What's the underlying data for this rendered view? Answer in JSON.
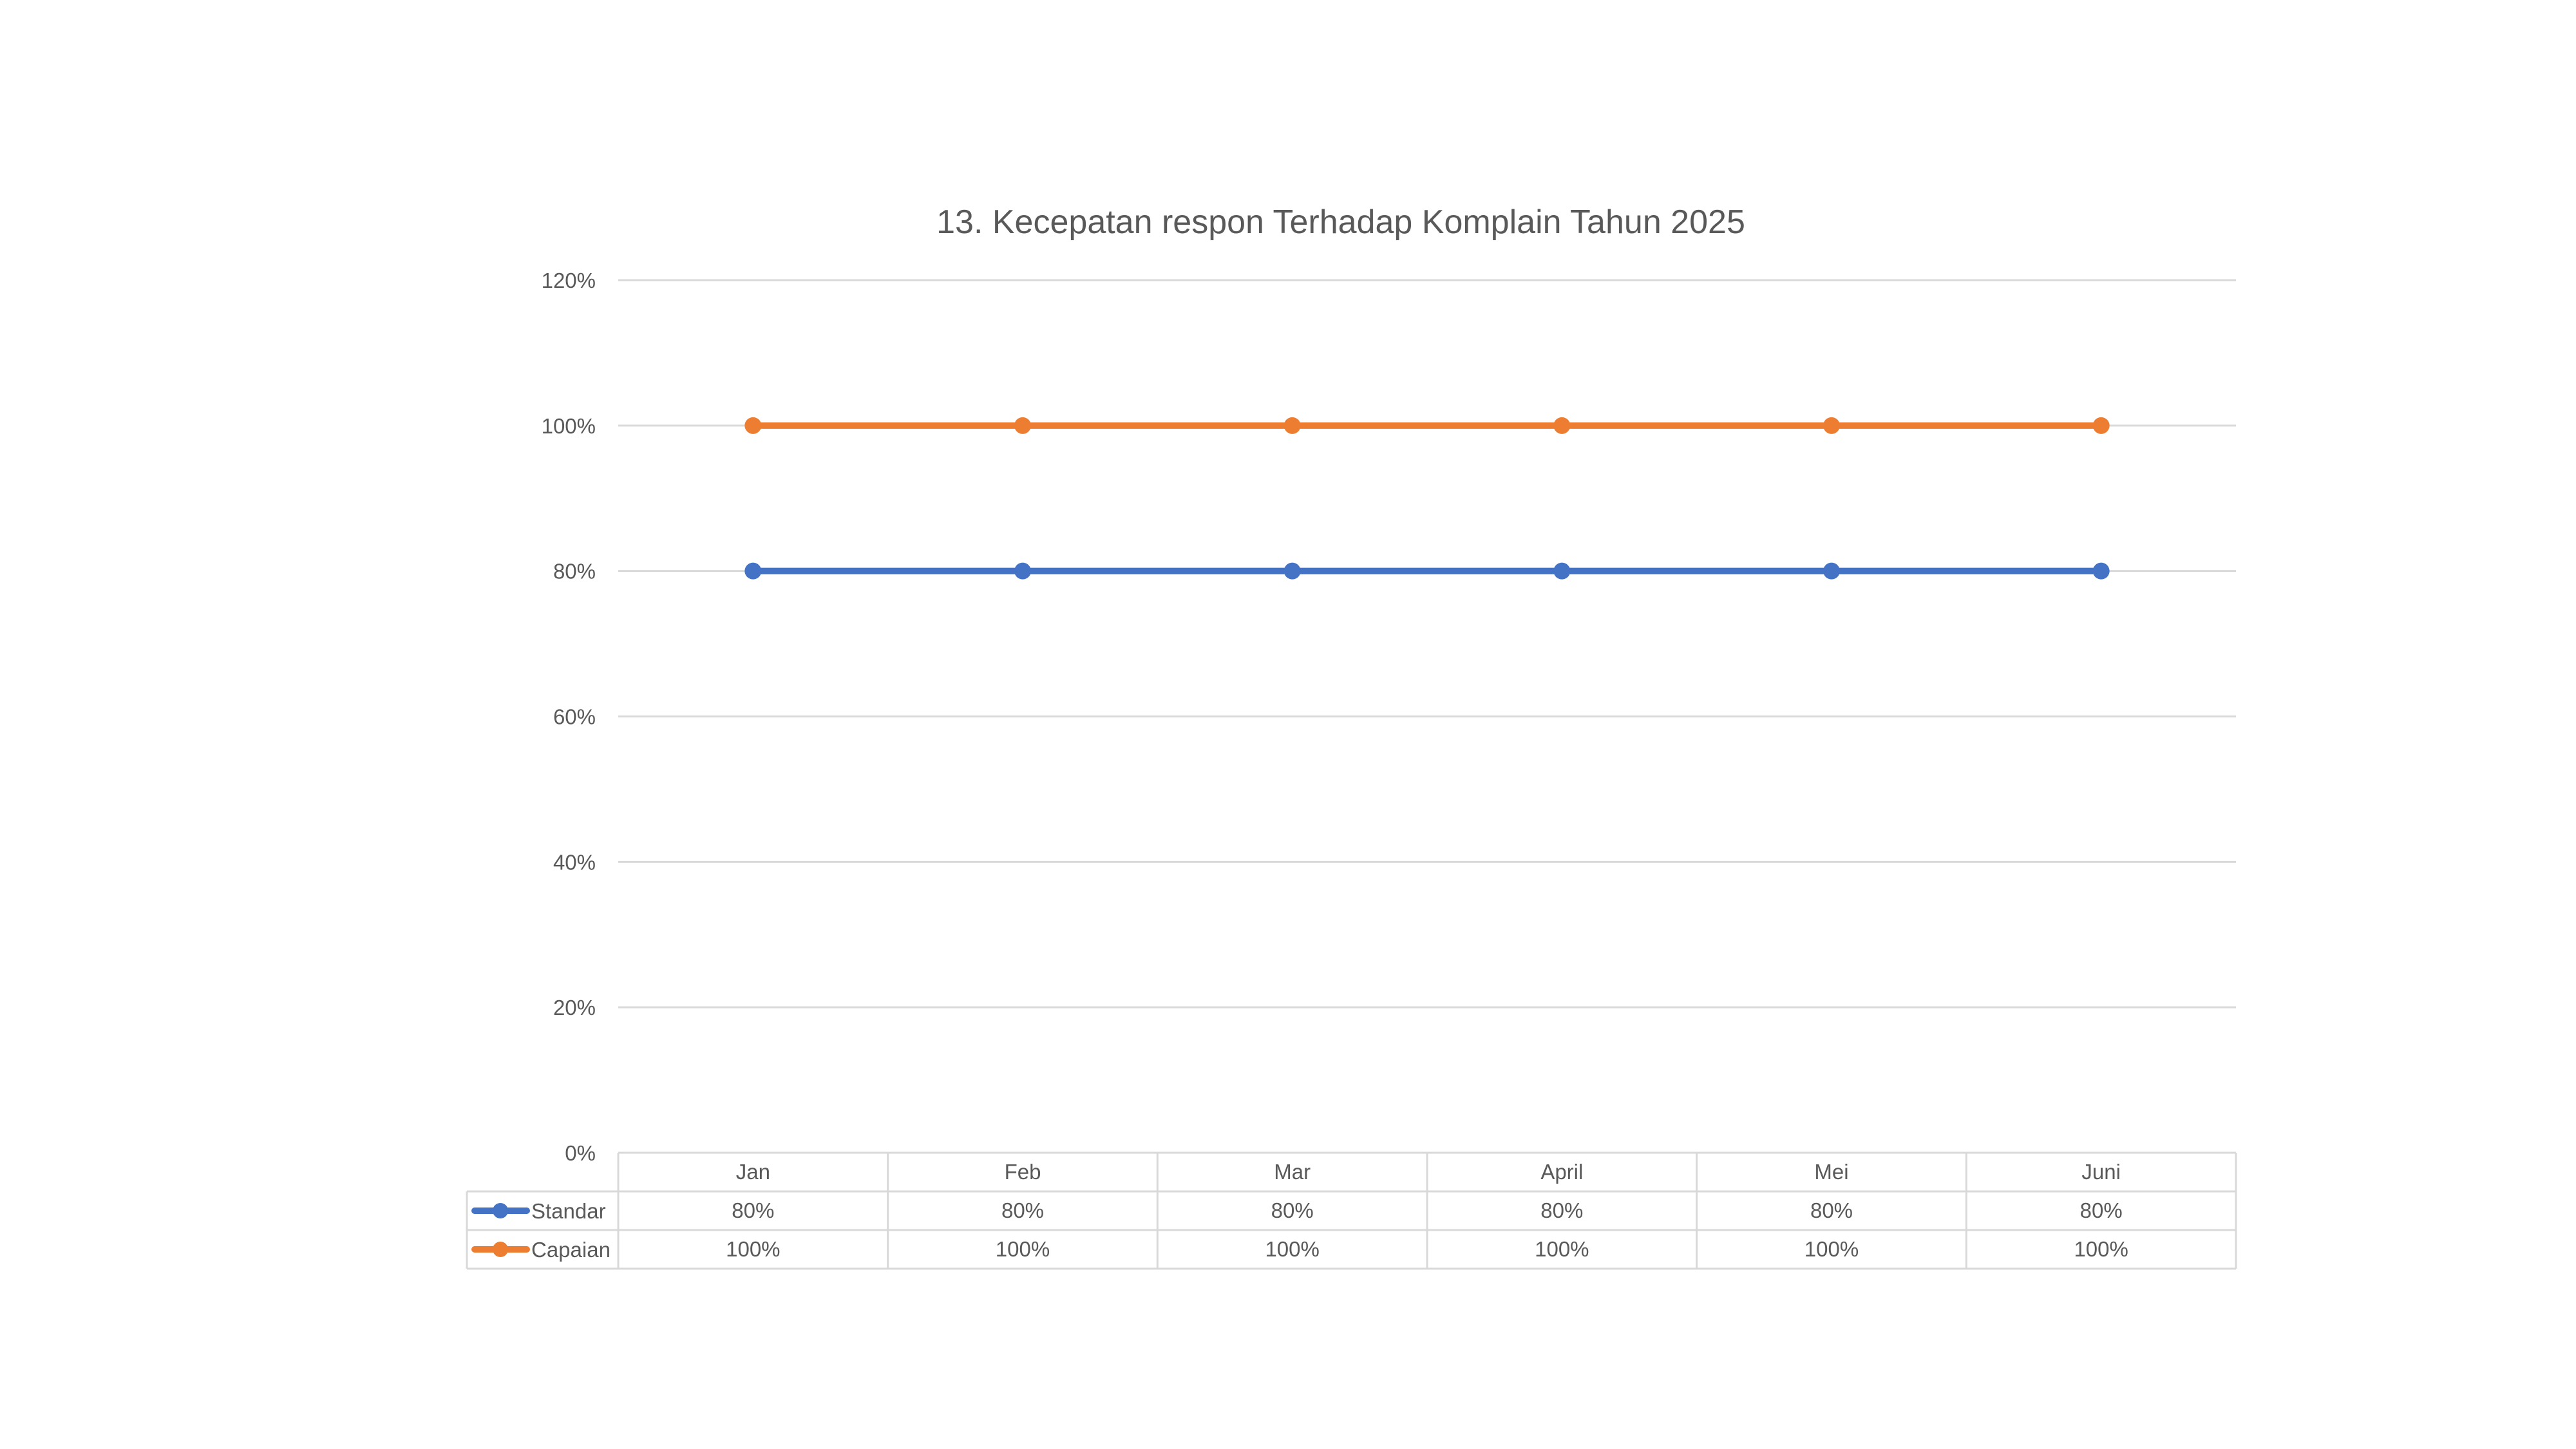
{
  "chart_data": {
    "type": "line",
    "title": "13. Kecepatan respon Terhadap Komplain Tahun 2025",
    "categories": [
      "Jan",
      "Feb",
      "Mar",
      "April",
      "Mei",
      "Juni"
    ],
    "series": [
      {
        "name": "Standar",
        "values": [
          80,
          80,
          80,
          80,
          80,
          80
        ],
        "labels": [
          "80%",
          "80%",
          "80%",
          "80%",
          "80%",
          "80%"
        ],
        "color": "#4472C4"
      },
      {
        "name": "Capaian",
        "values": [
          100,
          100,
          100,
          100,
          100,
          100
        ],
        "labels": [
          "100%",
          "100%",
          "100%",
          "100%",
          "100%",
          "100%"
        ],
        "color": "#ED7D31"
      }
    ],
    "y_ticks": [
      "0%",
      "20%",
      "40%",
      "60%",
      "80%",
      "100%",
      "120%"
    ],
    "ylim": [
      0,
      120
    ],
    "grid": true,
    "legend": "data-table"
  }
}
